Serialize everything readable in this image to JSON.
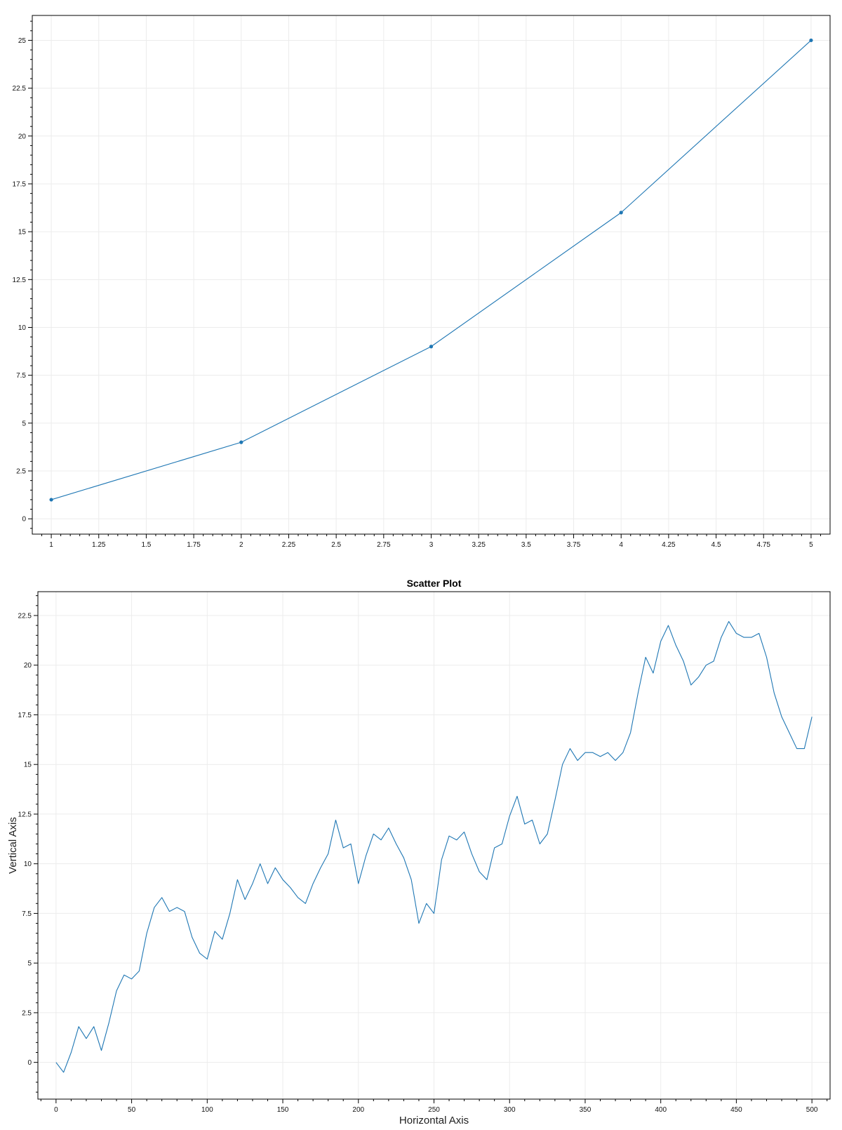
{
  "chart_data": [
    {
      "type": "line",
      "title": "",
      "xlabel": "",
      "ylabel": "",
      "xlim": [
        0.9,
        5.1
      ],
      "ylim": [
        -0.8,
        26.3
      ],
      "xticks": [
        1,
        1.25,
        1.5,
        1.75,
        2,
        2.25,
        2.5,
        2.75,
        3,
        3.25,
        3.5,
        3.75,
        4,
        4.25,
        4.5,
        4.75,
        5
      ],
      "xtick_labels": [
        "1",
        "1.25",
        "1.5",
        "1.75",
        "2",
        "2.25",
        "2.5",
        "2.75",
        "3",
        "3.25",
        "3.5",
        "3.75",
        "4",
        "4.25",
        "4.5",
        "4.75",
        "5"
      ],
      "yticks": [
        0,
        2.5,
        5,
        7.5,
        10,
        12.5,
        15,
        17.5,
        20,
        22.5,
        25
      ],
      "ytick_labels": [
        "0",
        "2.5",
        "5",
        "7.5",
        "10",
        "12.5",
        "15",
        "17.5",
        "20",
        "22.5",
        "25"
      ],
      "grid": true,
      "markers": true,
      "color": "#1f77b4",
      "series": [
        {
          "x": [
            1,
            2,
            3,
            4,
            5
          ],
          "y": [
            1,
            4,
            9,
            16,
            25
          ]
        }
      ]
    },
    {
      "type": "line",
      "title": "Scatter Plot",
      "xlabel": "Horizontal Axis",
      "ylabel": "Vertical Axis",
      "xlim": [
        -12,
        512
      ],
      "ylim": [
        -1.85,
        23.7
      ],
      "xticks": [
        0,
        50,
        100,
        150,
        200,
        250,
        300,
        350,
        400,
        450,
        500
      ],
      "xtick_labels": [
        "0",
        "50",
        "100",
        "150",
        "200",
        "250",
        "300",
        "350",
        "400",
        "450",
        "500"
      ],
      "yticks": [
        0,
        2.5,
        5,
        7.5,
        10,
        12.5,
        15,
        17.5,
        20,
        22.5
      ],
      "ytick_labels": [
        "0",
        "2.5",
        "5",
        "7.5",
        "10",
        "12.5",
        "15",
        "17.5",
        "20",
        "22.5"
      ],
      "grid": true,
      "markers": false,
      "color": "#1f77b4",
      "series": [
        {
          "x": [
            0,
            5,
            10,
            15,
            20,
            25,
            30,
            35,
            40,
            45,
            50,
            55,
            60,
            65,
            70,
            75,
            80,
            85,
            90,
            95,
            100,
            105,
            110,
            115,
            120,
            125,
            130,
            135,
            140,
            145,
            150,
            155,
            160,
            165,
            170,
            175,
            180,
            185,
            190,
            195,
            200,
            205,
            210,
            215,
            220,
            225,
            230,
            235,
            240,
            245,
            250,
            255,
            260,
            265,
            270,
            275,
            280,
            285,
            290,
            295,
            300,
            305,
            310,
            315,
            320,
            325,
            330,
            335,
            340,
            345,
            350,
            355,
            360,
            365,
            370,
            375,
            380,
            385,
            390,
            395,
            400,
            405,
            410,
            415,
            420,
            425,
            430,
            435,
            440,
            445,
            450,
            455,
            460,
            465,
            470,
            475,
            480,
            485,
            490,
            495,
            500
          ],
          "y": [
            0.0,
            -0.5,
            0.5,
            1.8,
            1.2,
            1.8,
            0.6,
            2.0,
            3.6,
            4.4,
            4.2,
            4.6,
            6.5,
            7.8,
            8.3,
            7.6,
            7.8,
            7.6,
            6.3,
            5.5,
            5.2,
            6.6,
            6.2,
            7.5,
            9.2,
            8.2,
            9.0,
            10.0,
            9.0,
            9.8,
            9.2,
            8.8,
            8.3,
            8.0,
            9.0,
            9.8,
            10.5,
            12.2,
            10.8,
            11.0,
            9.0,
            10.4,
            11.5,
            11.2,
            11.8,
            11.0,
            10.3,
            9.2,
            7.0,
            8.0,
            7.5,
            10.2,
            11.4,
            11.2,
            11.6,
            10.5,
            9.6,
            9.2,
            10.8,
            11.0,
            12.4,
            13.4,
            12.0,
            12.2,
            11.0,
            11.5,
            13.2,
            15.0,
            15.8,
            15.2,
            15.6,
            15.6,
            15.4,
            15.6,
            15.2,
            15.6,
            16.6,
            18.6,
            20.4,
            19.6,
            21.2,
            22.0,
            21.0,
            20.2,
            19.0,
            19.4,
            20.0,
            20.2,
            21.4,
            22.2,
            21.6,
            21.4,
            21.4,
            21.6,
            20.4,
            18.6,
            17.4,
            16.6,
            15.8,
            15.8,
            17.4
          ]
        }
      ]
    }
  ]
}
